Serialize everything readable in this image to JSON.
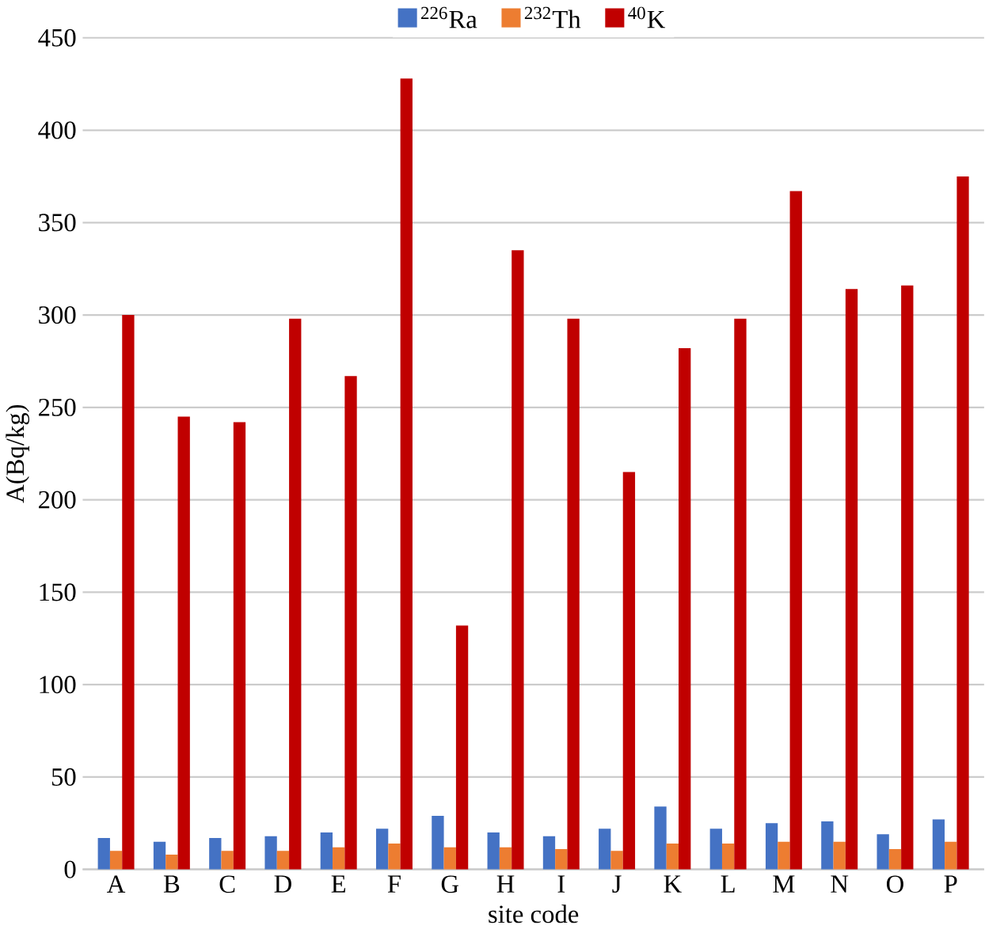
{
  "chart_data": {
    "type": "bar",
    "xlabel": "site code",
    "ylabel": "A(Bq/kg)",
    "categories": [
      "A",
      "B",
      "C",
      "D",
      "E",
      "F",
      "G",
      "H",
      "I",
      "J",
      "K",
      "L",
      "M",
      "N",
      "O",
      "P"
    ],
    "series": [
      {
        "name": "$^{226}$Ra",
        "color": "#4472c4",
        "values": [
          17,
          15,
          17,
          18,
          20,
          22,
          29,
          20,
          18,
          22,
          34,
          22,
          25,
          26,
          19,
          27
        ]
      },
      {
        "name": "$^{232}$Th",
        "color": "#ed7d31",
        "values": [
          10,
          8,
          10,
          10,
          12,
          14,
          12,
          12,
          11,
          10,
          14,
          14,
          15,
          15,
          11,
          15
        ]
      },
      {
        "name": "$^{40}$K",
        "color": "#c00000",
        "values": [
          300,
          245,
          242,
          298,
          267,
          428,
          132,
          335,
          298,
          215,
          282,
          298,
          367,
          314,
          316,
          375
        ]
      }
    ],
    "ylim": [
      0,
      450
    ],
    "yticks": [
      0,
      50,
      100,
      150,
      200,
      250,
      300,
      350,
      400,
      450
    ],
    "grid": "y",
    "legend": "top"
  }
}
